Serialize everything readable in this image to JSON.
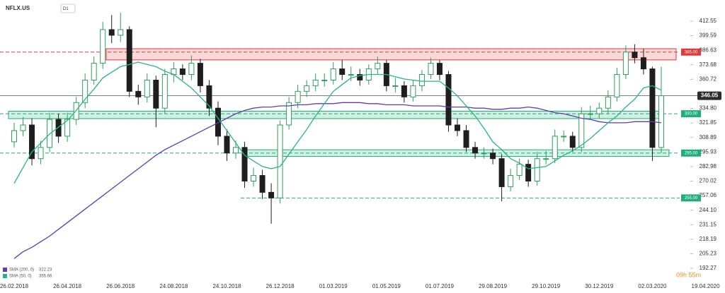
{
  "chart_data": {
    "type": "candlestick",
    "title": "NFLX.US",
    "timeframe": "D1",
    "up_color": "#2e9e5b",
    "down_color": "#1e1e1e",
    "categories": [
      "26.02.2018",
      null,
      null,
      null,
      null,
      null,
      "26.04.2018",
      null,
      null,
      null,
      null,
      null,
      "26.06.2018",
      null,
      null,
      null,
      null,
      null,
      "24.08.2018",
      null,
      null,
      null,
      null,
      null,
      "24.10.2018",
      null,
      null,
      null,
      null,
      null,
      "26.12.2018",
      null,
      null,
      null,
      null,
      null,
      "01.03.2019",
      null,
      null,
      null,
      null,
      null,
      "01.05.2019",
      null,
      null,
      null,
      null,
      null,
      "01.07.2019",
      null,
      null,
      null,
      null,
      null,
      "29.08.2019",
      null,
      null,
      null,
      null,
      null,
      "29.10.2019",
      null,
      null,
      null,
      null,
      null,
      "30.12.2019",
      null,
      null,
      null,
      null,
      null,
      "02.03.2020",
      null,
      null,
      null,
      null,
      null,
      "19.04.2020"
    ],
    "open": [
      305,
      315,
      320,
      290,
      300,
      325,
      310,
      325,
      340,
      360,
      375,
      405,
      400,
      405,
      350,
      345,
      360,
      335,
      365,
      370,
      365,
      375,
      355,
      335,
      310,
      295,
      300,
      270,
      275,
      260,
      255,
      320,
      340,
      350,
      355,
      360,
      360,
      370,
      365,
      365,
      360,
      370,
      375,
      355,
      355,
      345,
      355,
      365,
      375,
      365,
      320,
      315,
      300,
      295,
      295,
      290,
      265,
      275,
      285,
      270,
      290,
      290,
      310,
      310,
      300,
      330,
      330,
      335,
      345,
      365,
      385,
      380,
      370,
      300,
      null,
      null,
      null,
      null,
      null
    ],
    "high": [
      322,
      327,
      326,
      306,
      331,
      330,
      331,
      345,
      366,
      381,
      412,
      418,
      420,
      408,
      356,
      366,
      364,
      370,
      376,
      374,
      382,
      379,
      360,
      341,
      316,
      306,
      305,
      282,
      280,
      268,
      324,
      345,
      356,
      360,
      366,
      366,
      376,
      378,
      372,
      370,
      374,
      381,
      378,
      362,
      359,
      360,
      369,
      380,
      378,
      368,
      326,
      320,
      305,
      300,
      299,
      294,
      281,
      290,
      289,
      296,
      297,
      316,
      315,
      314,
      336,
      337,
      340,
      351,
      371,
      391,
      392,
      388,
      372,
      372,
      null,
      null,
      null,
      null,
      null
    ],
    "low": [
      300,
      310,
      284,
      285,
      296,
      304,
      305,
      320,
      335,
      356,
      370,
      393,
      394,
      345,
      338,
      340,
      318,
      330,
      358,
      360,
      360,
      349,
      328,
      302,
      288,
      290,
      264,
      265,
      254,
      232,
      250,
      316,
      335,
      345,
      350,
      354,
      356,
      360,
      359,
      355,
      356,
      365,
      350,
      349,
      340,
      341,
      350,
      361,
      360,
      314,
      310,
      296,
      290,
      290,
      285,
      252,
      261,
      271,
      265,
      266,
      285,
      286,
      305,
      296,
      296,
      325,
      326,
      330,
      341,
      361,
      375,
      365,
      288,
      295,
      null,
      null,
      null,
      null,
      null
    ],
    "close": [
      315,
      320,
      290,
      300,
      325,
      310,
      325,
      340,
      360,
      375,
      405,
      400,
      405,
      350,
      345,
      360,
      335,
      365,
      370,
      365,
      375,
      355,
      335,
      310,
      295,
      300,
      270,
      275,
      260,
      255,
      320,
      340,
      350,
      355,
      360,
      360,
      370,
      365,
      365,
      360,
      370,
      375,
      355,
      355,
      345,
      355,
      365,
      375,
      365,
      320,
      315,
      300,
      295,
      295,
      290,
      265,
      275,
      285,
      270,
      290,
      290,
      310,
      310,
      300,
      330,
      330,
      335,
      345,
      365,
      385,
      380,
      370,
      300,
      346.05,
      null,
      null,
      null,
      null,
      null
    ],
    "series": [
      {
        "name": "SMA (200, 0)",
        "color": "#5b3fb3",
        "legend_value": 322.23,
        "values": [
          201,
          207,
          211,
          216,
          221,
          227,
          233,
          239,
          245,
          251,
          257,
          263,
          269,
          275,
          281,
          287,
          293,
          298,
          302,
          306,
          310,
          314,
          318,
          322,
          326,
          330,
          333,
          335,
          336,
          336,
          337,
          337,
          338,
          338,
          339,
          339,
          339,
          340,
          340,
          340,
          339,
          339,
          338,
          338,
          338,
          337,
          337,
          337,
          337,
          336,
          336,
          336,
          335,
          335,
          334,
          334,
          335,
          335,
          336,
          335,
          333,
          331,
          330,
          328,
          326,
          325,
          323,
          322,
          322,
          322,
          323,
          323,
          323,
          322,
          null,
          null,
          null,
          null,
          null
        ]
      },
      {
        "name": "SMA (50, 0)",
        "color": "#26b583",
        "legend_value": 355.66,
        "values": [
          268,
          282,
          296,
          304,
          312,
          318,
          324,
          333,
          343,
          352,
          362,
          367,
          372,
          374,
          376,
          374,
          372,
          368,
          365,
          359,
          353,
          345,
          337,
          326,
          315,
          304,
          293,
          288,
          283,
          281,
          283,
          294,
          305,
          316,
          328,
          339,
          350,
          356,
          362,
          364,
          365,
          365,
          365,
          363,
          361,
          360,
          359,
          359,
          359,
          353,
          346,
          337,
          328,
          317,
          305,
          298,
          290,
          286,
          281,
          282,
          283,
          288,
          293,
          297,
          302,
          308,
          315,
          322,
          328,
          336,
          343,
          353,
          355,
          351,
          null,
          null,
          null,
          null,
          null
        ]
      }
    ],
    "levels": [
      {
        "value": 385,
        "label": "385.00",
        "color": "#e03a3a",
        "zone": [
          378,
          388
        ]
      },
      {
        "value": 330,
        "label": "330.00",
        "color": "#1fae7a",
        "zone": [
          325.7,
          332.3
        ]
      },
      {
        "value": 295,
        "label": "295.00",
        "color": "#1fae7a",
        "zone": [
          292,
          297.9
        ]
      },
      {
        "value": 255,
        "label": "255.00",
        "color": "#1fae7a"
      }
    ],
    "current_price": 346.05,
    "countdown": "09h 55m",
    "legend": "bottom-left",
    "ylim": [
      179.7,
      431.4
    ],
    "yticks": [
      412.55,
      399.59,
      386.63,
      373.68,
      360.72,
      {
        "value": 334.8,
        "label": "334.80"
      },
      321.85,
      308.89,
      295.93,
      282.98,
      270.02,
      257.06,
      {
        "value": 244.1,
        "label": "244.10"
      },
      231.15,
      218.19,
      205.23,
      192.27
    ]
  }
}
